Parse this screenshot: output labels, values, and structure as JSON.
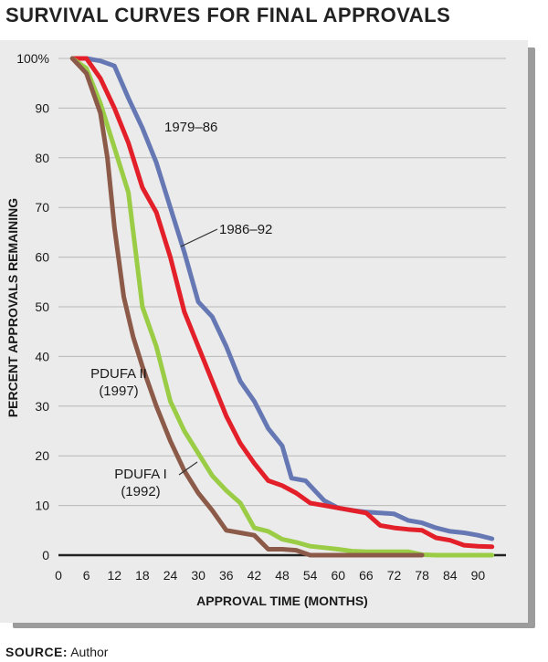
{
  "title": "SURVIVAL CURVES FOR FINAL APPROVALS",
  "source": {
    "label": "SOURCE:",
    "text": "Author"
  },
  "colors": {
    "1979-86": "#6678b4",
    "1986-92": "#e3202a",
    "PDUFA II": "#9acd45",
    "PDUFA I": "#8c5a48"
  },
  "chart_data": {
    "type": "line",
    "title": "SURVIVAL CURVES FOR FINAL APPROVALS",
    "xlabel": "APPROVAL TIME (MONTHS)",
    "ylabel": "PERCENT APPROVALS REMAINING",
    "xlim": [
      0,
      96
    ],
    "ylim": [
      0,
      100
    ],
    "xticks": [
      0,
      6,
      12,
      18,
      24,
      30,
      36,
      42,
      48,
      54,
      60,
      66,
      72,
      78,
      84,
      90
    ],
    "yticks": [
      0,
      10,
      20,
      30,
      40,
      50,
      60,
      70,
      80,
      90,
      100
    ],
    "ytick_labels": [
      "0",
      "10",
      "20",
      "30",
      "40",
      "50",
      "60",
      "70",
      "80",
      "90",
      "100%"
    ],
    "grid": "horizontal",
    "series": [
      {
        "name": "1979–86",
        "color": "#6678b4",
        "points": [
          [
            3,
            100
          ],
          [
            6,
            100
          ],
          [
            9,
            99.5
          ],
          [
            12,
            98.5
          ],
          [
            15,
            92
          ],
          [
            18,
            86
          ],
          [
            21,
            79
          ],
          [
            24,
            70
          ],
          [
            27,
            61
          ],
          [
            30,
            51
          ],
          [
            33,
            48
          ],
          [
            36,
            42
          ],
          [
            39,
            35
          ],
          [
            42,
            31
          ],
          [
            45,
            25.5
          ],
          [
            48,
            22
          ],
          [
            50,
            15.5
          ],
          [
            53,
            15
          ],
          [
            57,
            11
          ],
          [
            60,
            9.5
          ],
          [
            63,
            9
          ],
          [
            66,
            8.7
          ],
          [
            69,
            8.5
          ],
          [
            72,
            8.3
          ],
          [
            75,
            7
          ],
          [
            78,
            6.5
          ],
          [
            81,
            5.5
          ],
          [
            84,
            4.8
          ],
          [
            87,
            4.5
          ],
          [
            90,
            4
          ],
          [
            93,
            3.3
          ]
        ]
      },
      {
        "name": "1986–92",
        "color": "#e3202a",
        "points": [
          [
            3,
            100
          ],
          [
            6,
            100
          ],
          [
            9,
            96
          ],
          [
            12,
            90
          ],
          [
            15,
            83
          ],
          [
            18,
            74
          ],
          [
            21,
            69
          ],
          [
            24,
            60
          ],
          [
            27,
            49
          ],
          [
            30,
            42
          ],
          [
            33,
            35
          ],
          [
            36,
            28
          ],
          [
            39,
            22.5
          ],
          [
            42,
            18.5
          ],
          [
            45,
            15
          ],
          [
            48,
            14
          ],
          [
            51,
            12.5
          ],
          [
            54,
            10.5
          ],
          [
            57,
            10
          ],
          [
            60,
            9.5
          ],
          [
            63,
            9
          ],
          [
            66,
            8.5
          ],
          [
            69,
            6
          ],
          [
            72,
            5.5
          ],
          [
            75,
            5.2
          ],
          [
            78,
            5
          ],
          [
            81,
            3.5
          ],
          [
            84,
            3
          ],
          [
            87,
            2
          ],
          [
            90,
            1.8
          ],
          [
            93,
            1.7
          ]
        ]
      },
      {
        "name": "PDUFA II (1997)",
        "color": "#9acd45",
        "points": [
          [
            3,
            100
          ],
          [
            6,
            98
          ],
          [
            9,
            91
          ],
          [
            12,
            82
          ],
          [
            15,
            73
          ],
          [
            18,
            50
          ],
          [
            21,
            42
          ],
          [
            24,
            31
          ],
          [
            27,
            25
          ],
          [
            30,
            20.5
          ],
          [
            33,
            16
          ],
          [
            36,
            13
          ],
          [
            39,
            10.5
          ],
          [
            42,
            5.5
          ],
          [
            45,
            4.8
          ],
          [
            48,
            3.2
          ],
          [
            51,
            2.6
          ],
          [
            54,
            1.8
          ],
          [
            57,
            1.5
          ],
          [
            60,
            1.2
          ],
          [
            63,
            0.8
          ],
          [
            66,
            0.7
          ],
          [
            69,
            0.7
          ],
          [
            72,
            0.7
          ],
          [
            75,
            0.7
          ],
          [
            78,
            0.1
          ],
          [
            81,
            0
          ],
          [
            84,
            0
          ],
          [
            87,
            0
          ],
          [
            90,
            0
          ],
          [
            93,
            0
          ]
        ]
      },
      {
        "name": "PDUFA I (1992)",
        "color": "#8c5a48",
        "points": [
          [
            3,
            100
          ],
          [
            6,
            97
          ],
          [
            9,
            89
          ],
          [
            10.5,
            80
          ],
          [
            12,
            66
          ],
          [
            14,
            52
          ],
          [
            16,
            44
          ],
          [
            18,
            38
          ],
          [
            21,
            30
          ],
          [
            24,
            23
          ],
          [
            27,
            17
          ],
          [
            30,
            12.5
          ],
          [
            33,
            9
          ],
          [
            36,
            5
          ],
          [
            39,
            4.5
          ],
          [
            42,
            4
          ],
          [
            45,
            1.2
          ],
          [
            48,
            1.2
          ],
          [
            51,
            1
          ],
          [
            54,
            0
          ],
          [
            57,
            0
          ],
          [
            60,
            0
          ],
          [
            63,
            0
          ],
          [
            66,
            0
          ],
          [
            69,
            0
          ],
          [
            72,
            0
          ],
          [
            75,
            0
          ],
          [
            78,
            0
          ]
        ]
      }
    ],
    "annotations": [
      {
        "lines": [
          "1979–86"
        ],
        "series": "1979–86"
      },
      {
        "lines": [
          "1986–92"
        ],
        "series": "1986–92"
      },
      {
        "lines": [
          "PDUFA II",
          "(1997)"
        ],
        "series": "PDUFA II (1997)"
      },
      {
        "lines": [
          "PDUFA I",
          "(1992)"
        ],
        "series": "PDUFA I (1992)"
      }
    ]
  }
}
